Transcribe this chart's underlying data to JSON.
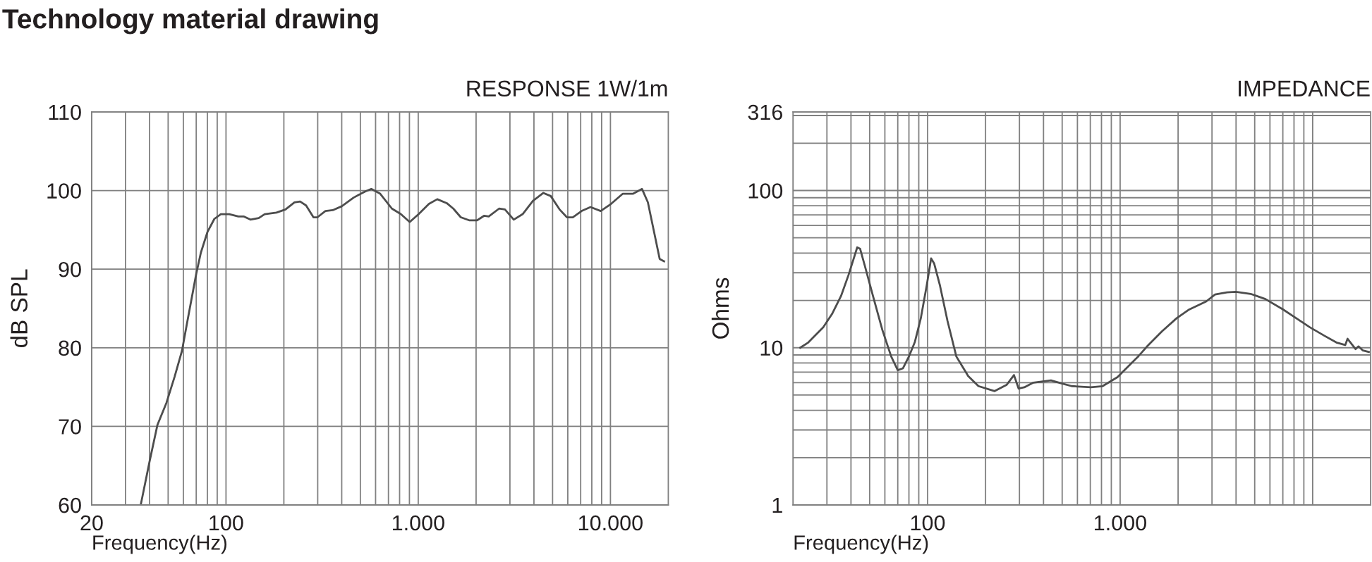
{
  "chart_data": [
    {
      "type": "line",
      "title": "Technology material drawing",
      "subtitle": "RESPONSE 1W/1m",
      "xlabel": "Frequency(Hz)",
      "ylabel": "dB SPL",
      "log": "x",
      "grid": true,
      "marker": "none",
      "line_style": "solid",
      "xlim": [
        20,
        20000
      ],
      "ylim": [
        60,
        110
      ],
      "xticks": [
        {
          "value": 20,
          "label": "20"
        },
        {
          "value": 30,
          "label": null
        },
        {
          "value": 40,
          "label": null
        },
        {
          "value": 50,
          "label": null
        },
        {
          "value": 60,
          "label": null
        },
        {
          "value": 70,
          "label": null
        },
        {
          "value": 80,
          "label": null
        },
        {
          "value": 90,
          "label": null
        },
        {
          "value": 100,
          "label": "100"
        },
        {
          "value": 200,
          "label": null
        },
        {
          "value": 300,
          "label": null
        },
        {
          "value": 400,
          "label": null
        },
        {
          "value": 500,
          "label": null
        },
        {
          "value": 600,
          "label": null
        },
        {
          "value": 700,
          "label": null
        },
        {
          "value": 800,
          "label": null
        },
        {
          "value": 900,
          "label": null
        },
        {
          "value": 1000,
          "label": "1.000"
        },
        {
          "value": 2000,
          "label": null
        },
        {
          "value": 3000,
          "label": null
        },
        {
          "value": 4000,
          "label": null
        },
        {
          "value": 5000,
          "label": null
        },
        {
          "value": 6000,
          "label": null
        },
        {
          "value": 7000,
          "label": null
        },
        {
          "value": 8000,
          "label": null
        },
        {
          "value": 9000,
          "label": null
        },
        {
          "value": 10000,
          "label": "10.000"
        }
      ],
      "yticks": [
        60,
        70,
        80,
        90,
        100,
        110
      ],
      "series": [
        {
          "color": "#4d4d4d",
          "x": [
            36,
            40,
            44,
            49,
            54,
            59,
            63,
            70,
            74,
            80,
            87,
            94,
            104,
            116,
            124,
            134,
            148,
            159,
            183,
            204,
            227,
            243,
            261,
            285,
            299,
            329,
            359,
            400,
            461,
            531,
            570,
            634,
            730,
            812,
            903,
            1005,
            1137,
            1256,
            1407,
            1523,
            1665,
            1850,
            2020,
            2206,
            2327,
            2633,
            2825,
            3141,
            3494,
            3955,
            4477,
            4890,
            5436,
            5937,
            6370,
            7085,
            7877,
            8898,
            10070,
            11600,
            13130,
            14600,
            15660,
            16810,
            18040,
            19020
          ],
          "values": [
            60,
            65.5,
            70.2,
            73.0,
            76.3,
            79.6,
            83.4,
            89.4,
            92.1,
            94.7,
            96.4,
            97.0,
            97.0,
            96.7,
            96.7,
            96.3,
            96.5,
            97.0,
            97.2,
            97.6,
            98.5,
            98.6,
            98.1,
            96.6,
            96.6,
            97.4,
            97.5,
            98.0,
            99.1,
            99.9,
            100.2,
            99.6,
            97.7,
            97.0,
            96.0,
            97.0,
            98.3,
            98.9,
            98.4,
            97.7,
            96.6,
            96.2,
            96.2,
            96.8,
            96.7,
            97.7,
            97.6,
            96.3,
            97.0,
            98.7,
            99.7,
            99.3,
            97.6,
            96.6,
            96.6,
            97.4,
            97.9,
            97.4,
            98.3,
            99.6,
            99.6,
            100.2,
            98.5,
            94.9,
            91.3,
            91.0
          ]
        }
      ]
    },
    {
      "type": "line",
      "subtitle": "IMPEDANCE",
      "xlabel": "Frequency(Hz)",
      "ylabel": "Ohms",
      "log": "xy",
      "grid": true,
      "marker": "none",
      "line_style": "solid",
      "xlim": [
        20,
        20000
      ],
      "ylim": [
        1,
        316
      ],
      "xticks": [
        {
          "value": 20,
          "label": null
        },
        {
          "value": 30,
          "label": null
        },
        {
          "value": 40,
          "label": null
        },
        {
          "value": 50,
          "label": null
        },
        {
          "value": 60,
          "label": null
        },
        {
          "value": 70,
          "label": null
        },
        {
          "value": 80,
          "label": null
        },
        {
          "value": 90,
          "label": null
        },
        {
          "value": 100,
          "label": "100"
        },
        {
          "value": 200,
          "label": null
        },
        {
          "value": 300,
          "label": null
        },
        {
          "value": 400,
          "label": null
        },
        {
          "value": 500,
          "label": null
        },
        {
          "value": 600,
          "label": null
        },
        {
          "value": 700,
          "label": null
        },
        {
          "value": 800,
          "label": null
        },
        {
          "value": 900,
          "label": null
        },
        {
          "value": 1000,
          "label": "1.000"
        },
        {
          "value": 2000,
          "label": null
        },
        {
          "value": 3000,
          "label": null
        },
        {
          "value": 4000,
          "label": null
        },
        {
          "value": 5000,
          "label": null
        },
        {
          "value": 6000,
          "label": null
        },
        {
          "value": 7000,
          "label": null
        },
        {
          "value": 8000,
          "label": null
        },
        {
          "value": 9000,
          "label": null
        },
        {
          "value": 10000,
          "label": null
        }
      ],
      "yticks": [
        1,
        {
          "value": 2,
          "label": null
        },
        {
          "value": 3,
          "label": null
        },
        {
          "value": 4,
          "label": null
        },
        {
          "value": 5,
          "label": null
        },
        {
          "value": 6,
          "label": null
        },
        {
          "value": 7,
          "label": null
        },
        {
          "value": 8,
          "label": null
        },
        {
          "value": 9,
          "label": null
        },
        10,
        {
          "value": 20,
          "label": null
        },
        {
          "value": 30,
          "label": null
        },
        {
          "value": 40,
          "label": null
        },
        {
          "value": 50,
          "label": null
        },
        {
          "value": 60,
          "label": null
        },
        {
          "value": 70,
          "label": null
        },
        {
          "value": 80,
          "label": null
        },
        {
          "value": 90,
          "label": null
        },
        100,
        {
          "value": 200,
          "label": null
        },
        {
          "value": 300,
          "label": null
        },
        316
      ],
      "series": [
        {
          "color": "#4d4d4d",
          "x": [
            21.8,
            24.0,
            28.7,
            31.9,
            35.5,
            38.8,
            40.9,
            43.1,
            44.6,
            47.1,
            52.3,
            58.2,
            64.7,
            70.0,
            74.5,
            80.0,
            85.9,
            92.2,
            98.9,
            104.3,
            108.1,
            116,
            126.9,
            141,
            162.5,
            183.7,
            223,
            257,
            281,
            297,
            318,
            354,
            437,
            504,
            560,
            705,
            811,
            969,
            1241,
            1381,
            1649,
            1965,
            2264,
            2800,
            3113,
            3589,
            3990,
            4764,
            5680,
            7025,
            8090,
            9660,
            11530,
            13280,
            14760,
            15180,
            16700,
            17300,
            18240,
            19590
          ],
          "values": [
            10.0,
            10.8,
            13.5,
            16.4,
            21.3,
            28.9,
            35.4,
            43.5,
            42.6,
            33.6,
            20.9,
            13.0,
            8.8,
            7.2,
            7.4,
            8.8,
            10.9,
            15.4,
            24.8,
            37.0,
            34.4,
            24.8,
            14.8,
            8.8,
            6.6,
            5.7,
            5.3,
            5.8,
            6.7,
            5.5,
            5.6,
            6.0,
            6.2,
            5.9,
            5.7,
            5.6,
            5.7,
            6.5,
            8.8,
            10.2,
            12.7,
            15.4,
            17.4,
            19.7,
            21.8,
            22.5,
            22.7,
            22.0,
            20.4,
            17.5,
            15.6,
            13.5,
            11.9,
            10.8,
            10.4,
            11.4,
            9.8,
            10.2,
            9.6,
            9.4
          ]
        }
      ]
    }
  ]
}
